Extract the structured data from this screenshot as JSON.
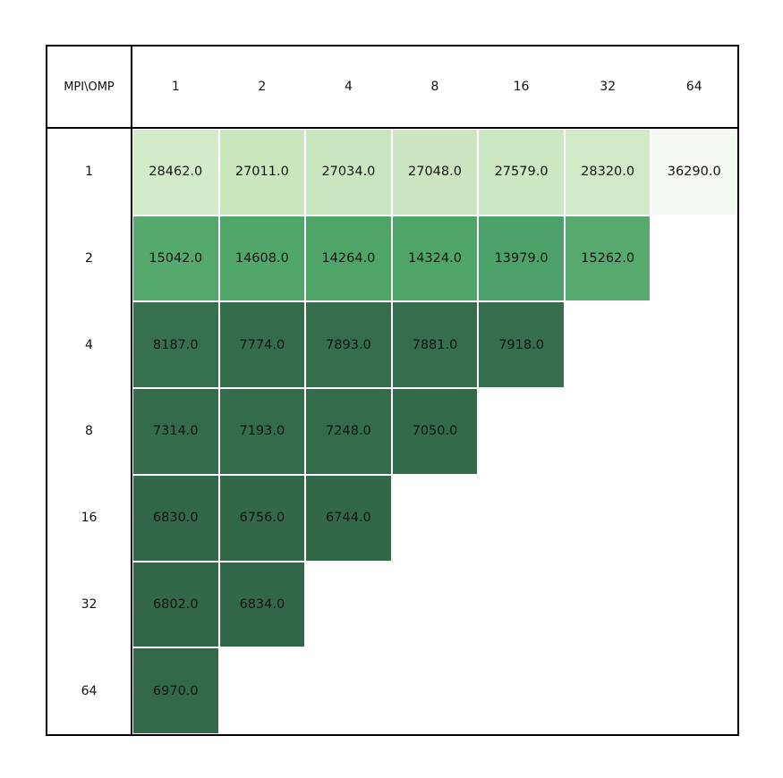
{
  "chart_data": {
    "type": "heatmap",
    "title": "",
    "corner_label": "MPI\\OMP",
    "col_labels": [
      "1",
      "2",
      "4",
      "8",
      "16",
      "32",
      "64"
    ],
    "row_labels": [
      "1",
      "2",
      "4",
      "8",
      "16",
      "32",
      "64"
    ],
    "values": [
      [
        28462.0,
        27011.0,
        27034.0,
        27048.0,
        27579.0,
        28320.0,
        36290.0
      ],
      [
        15042.0,
        14608.0,
        14264.0,
        14324.0,
        13979.0,
        15262.0,
        null
      ],
      [
        8187.0,
        7774.0,
        7893.0,
        7881.0,
        7918.0,
        null,
        null
      ],
      [
        7314.0,
        7193.0,
        7248.0,
        7050.0,
        null,
        null,
        null
      ],
      [
        6830.0,
        6756.0,
        6744.0,
        null,
        null,
        null,
        null
      ],
      [
        6802.0,
        6834.0,
        null,
        null,
        null,
        null,
        null
      ],
      [
        6970.0,
        null,
        null,
        null,
        null,
        null,
        null
      ]
    ],
    "cell_colors": [
      [
        "#d2ebc8",
        "#cae6bf",
        "#cae6c0",
        "#cbe6c0",
        "#cce8c2",
        "#d1eac7",
        "#f4faf1"
      ],
      [
        "#55a86e",
        "#51a66b",
        "#4fa469",
        "#4fa469",
        "#4ca268",
        "#57a970",
        null
      ],
      [
        "#37704f",
        "#356d4c",
        "#366e4d",
        "#366e4d",
        "#366e4d",
        null,
        null
      ],
      [
        "#346c4b",
        "#346b4b",
        "#346b4b",
        "#336a4a",
        null,
        null,
        null
      ],
      [
        "#326849",
        "#326848",
        "#326848",
        null,
        null,
        null,
        null
      ],
      [
        "#326848",
        "#326849",
        null,
        null,
        null,
        null,
        null
      ],
      [
        "#336949",
        null,
        null,
        null,
        null,
        null,
        null
      ]
    ],
    "value_format": "fixed-1-decimal",
    "legend": "none",
    "colormap_note": "green gradient: low values dark green, high values near white",
    "text_color": "#131313",
    "border_color": "#000000",
    "gap_color": "#ffffff"
  }
}
